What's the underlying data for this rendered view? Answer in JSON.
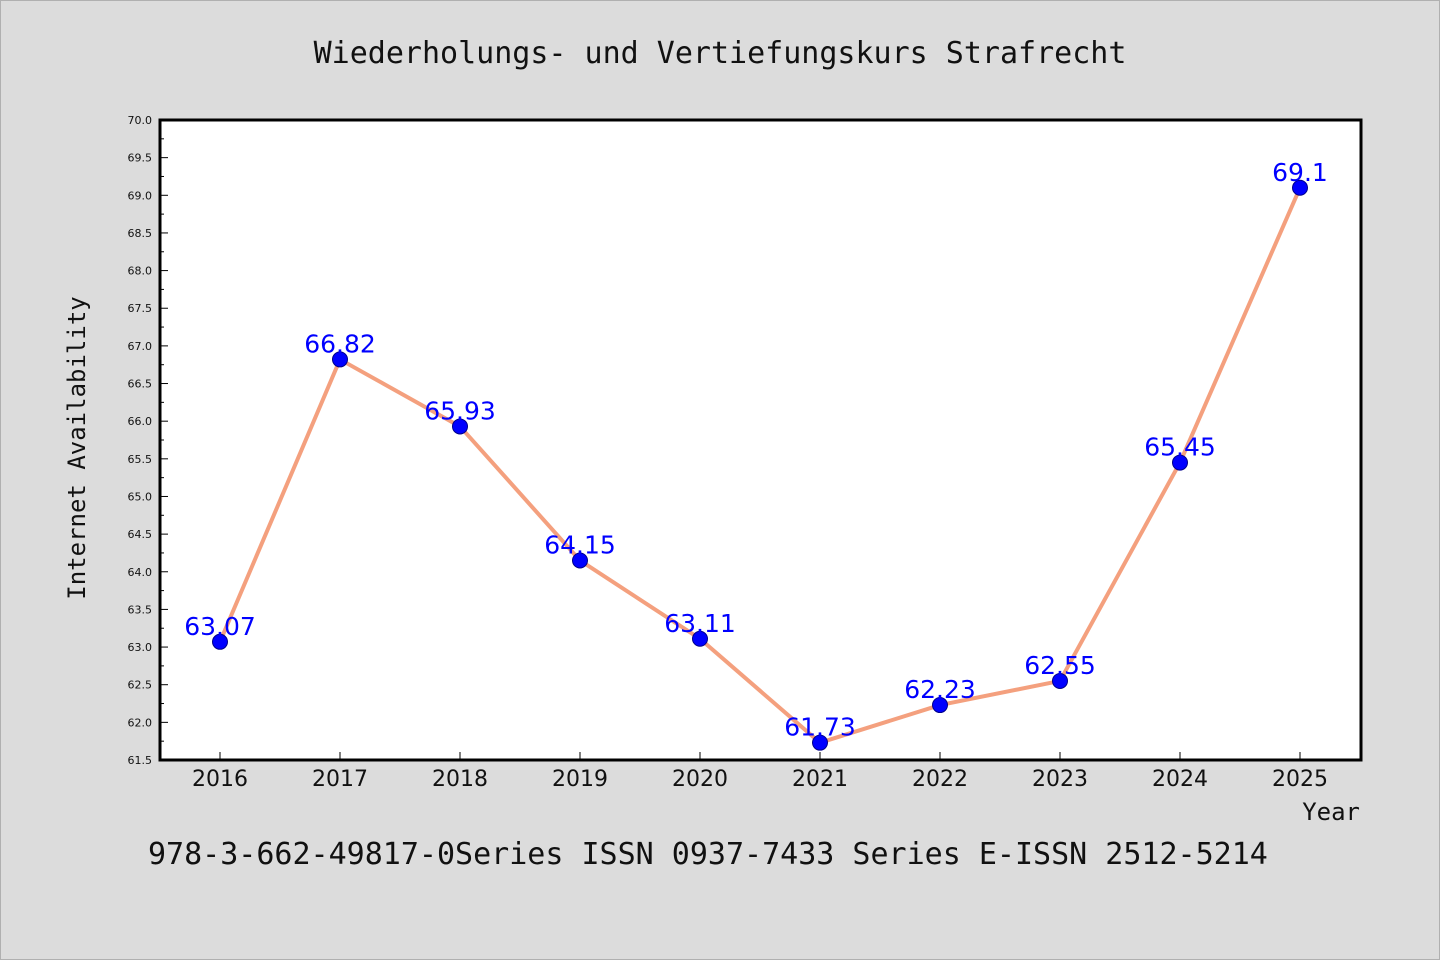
{
  "chart_data": {
    "type": "line",
    "title": "Wiederholungs- und Vertiefungskurs Strafrecht",
    "xlabel": "Year",
    "ylabel": "Internet Availability",
    "categories": [
      "2016",
      "2017",
      "2018",
      "2019",
      "2020",
      "2021",
      "2022",
      "2023",
      "2024",
      "2025"
    ],
    "series": [
      {
        "values": [
          63.07,
          66.82,
          65.93,
          64.15,
          63.11,
          61.73,
          62.23,
          62.55,
          65.45,
          69.1
        ],
        "labels": [
          "63.07",
          "66.82",
          "65.93",
          "64.15",
          "63.11",
          "61.73",
          "62.23",
          "62.55",
          "65.45",
          "69.1"
        ]
      }
    ],
    "ylim": [
      61.5,
      70.0
    ],
    "yticks": [
      "61.5",
      "62.0",
      "62.5",
      "63.0",
      "63.5",
      "64.0",
      "64.5",
      "65.0",
      "65.5",
      "66.0",
      "66.5",
      "67.0",
      "67.5",
      "68.0",
      "68.5",
      "69.0",
      "69.5",
      "70.0"
    ],
    "grid": false,
    "legend": "none",
    "colors": {
      "line": "#f4a07e",
      "marker": "#0000ff",
      "label": "#0000ff",
      "background": "#dcdcdc",
      "plot_background": "#ffffff"
    }
  },
  "footer": "978-3-662-49817-0Series ISSN 0937-7433 Series E-ISSN 2512-5214"
}
